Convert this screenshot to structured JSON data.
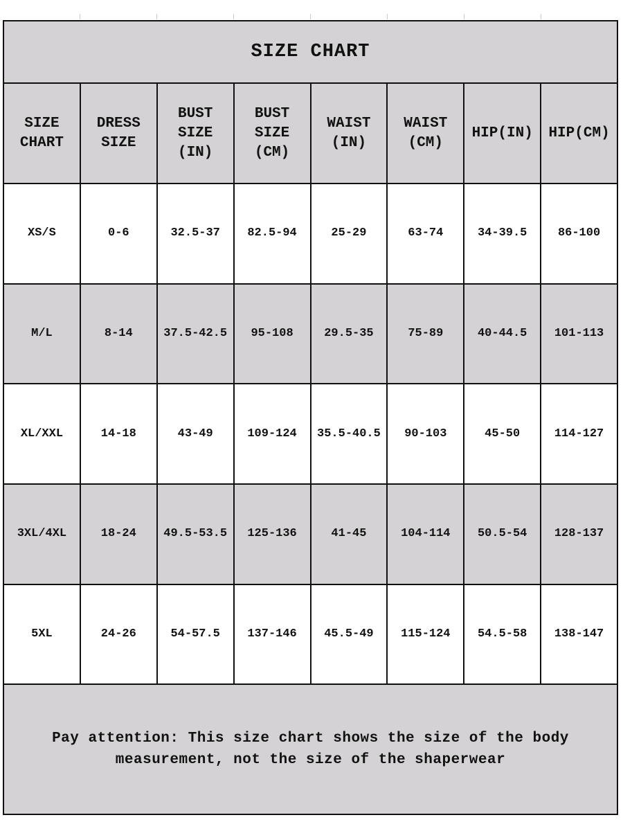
{
  "title": "SIZE CHART",
  "columns": [
    "SIZE CHART",
    "DRESS SIZE",
    "BUST SIZE (IN)",
    "BUST SIZE (CM)",
    "WAIST (IN)",
    "WAIST (CM)",
    "HIP(IN)",
    "HIP(CM)"
  ],
  "rows": [
    [
      "XS/S",
      "0-6",
      "32.5-37",
      "82.5-94",
      "25-29",
      "63-74",
      "34-39.5",
      "86-100"
    ],
    [
      "M/L",
      "8-14",
      "37.5-42.5",
      "95-108",
      "29.5-35",
      "75-89",
      "40-44.5",
      "101-113"
    ],
    [
      "XL/XXL",
      "14-18",
      "43-49",
      "109-124",
      "35.5-40.5",
      "90-103",
      "45-50",
      "114-127"
    ],
    [
      "3XL/4XL",
      "18-24",
      "49.5-53.5",
      "125-136",
      "41-45",
      "104-114",
      "50.5-54",
      "128-137"
    ],
    [
      "5XL",
      "24-26",
      "54-57.5",
      "137-146",
      "45.5-49",
      "115-124",
      "54.5-58",
      "138-147"
    ]
  ],
  "note": "Pay attention: This size chart shows the size of the body measurement, not the size of the shaperwear",
  "colors": {
    "header_bg": "#d4d2d4",
    "border": "#111111",
    "row_alt_bg": "#d4d2d4"
  }
}
